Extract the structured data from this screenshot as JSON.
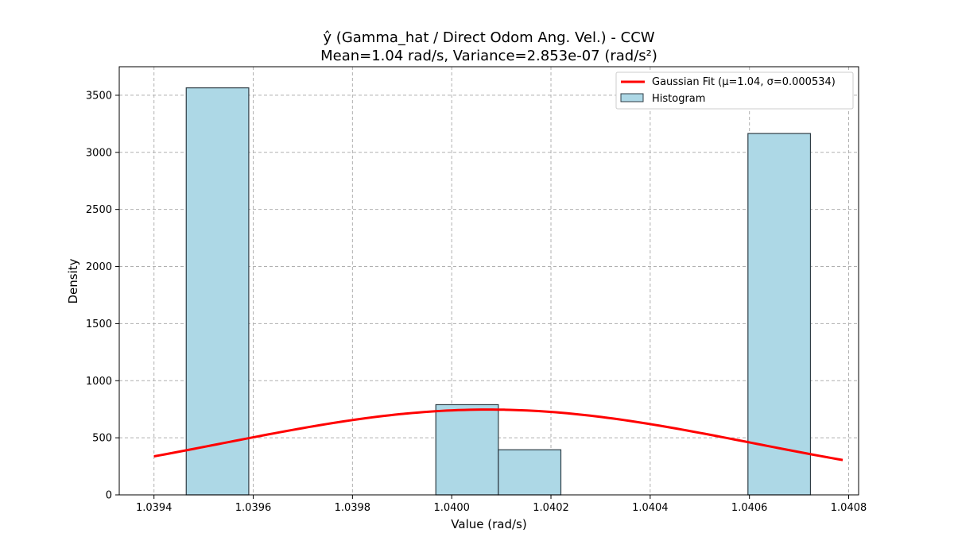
{
  "chart_data": {
    "type": "bar",
    "title": "ŷ (Gamma_hat / Direct Odom Ang. Vel.) - CCW",
    "subtitle": "Mean=1.04 rad/s, Variance=2.853e-07 (rad/s²)",
    "xlabel": "Value (rad/s)",
    "ylabel": "Density",
    "xlim": [
      1.03933,
      1.04082
    ],
    "ylim": [
      0,
      3750
    ],
    "xticks": [
      1.0394,
      1.0396,
      1.0398,
      1.04,
      1.0402,
      1.0404,
      1.0406,
      1.0408
    ],
    "xtick_labels": [
      "1.0394",
      "1.0396",
      "1.0398",
      "1.0400",
      "1.0402",
      "1.0404",
      "1.0406",
      "1.0408"
    ],
    "yticks": [
      0,
      500,
      1000,
      1500,
      2000,
      2500,
      3000,
      3500
    ],
    "ytick_labels": [
      "0",
      "500",
      "1000",
      "1500",
      "2000",
      "2500",
      "3000",
      "3500"
    ],
    "grid": true,
    "legend_position": "top-right",
    "bins": [
      {
        "start": 1.039465,
        "end": 1.039591,
        "value": 3565
      },
      {
        "start": 1.039968,
        "end": 1.040094,
        "value": 790
      },
      {
        "start": 1.040094,
        "end": 1.04022,
        "value": 395
      },
      {
        "start": 1.040597,
        "end": 1.040723,
        "value": 3165
      }
    ],
    "fit": {
      "name": "Gaussian Fit (μ=1.04, σ=0.000534)",
      "mu": 1.0400735,
      "sigma": 0.000534,
      "x_range": [
        1.0394,
        1.040788
      ],
      "samples": 120
    },
    "histogram_name": "Histogram",
    "colors": {
      "bar_fill": "#add8e6",
      "bar_edge": "#2f3d45",
      "fit_line": "#ff0000",
      "grid": "#b0b0b0"
    }
  }
}
